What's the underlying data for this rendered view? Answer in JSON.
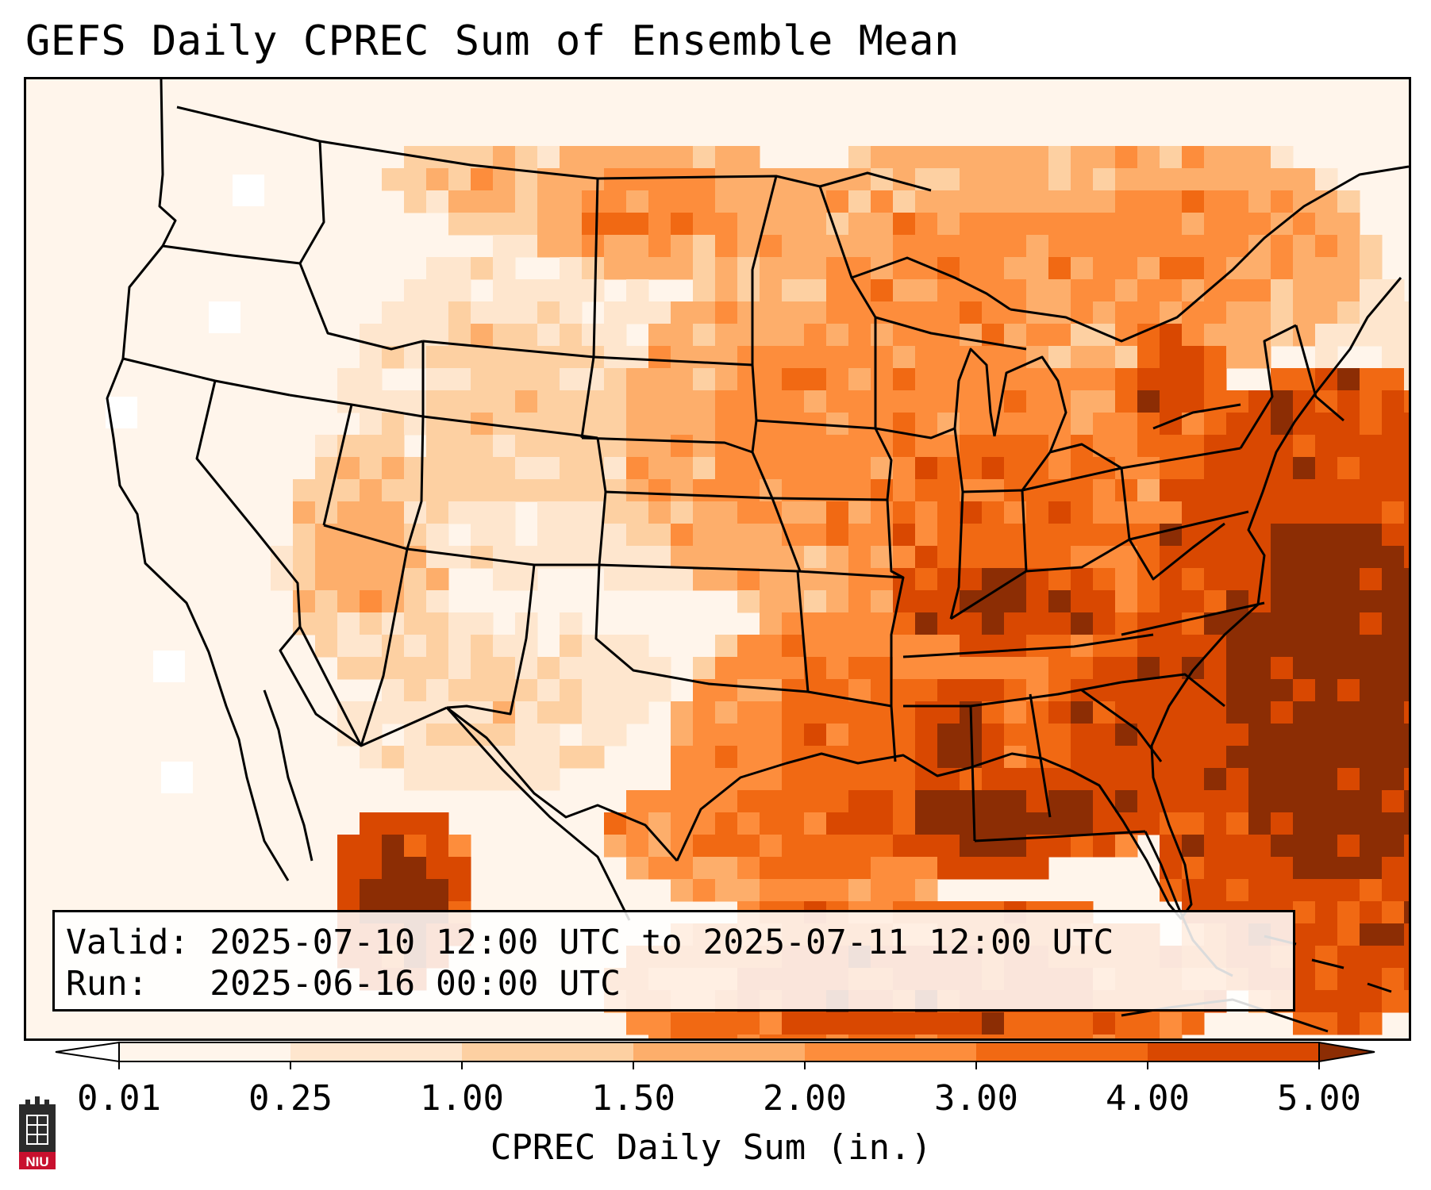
{
  "title": "GEFS Daily CPREC Sum of Ensemble Mean",
  "info": {
    "valid_line": "Valid: 2025-07-10 12:00 UTC to 2025-07-11 12:00 UTC",
    "run_line": "Run:   2025-06-16 00:00 UTC"
  },
  "colorbar": {
    "label": "CPREC Daily Sum (in.)",
    "ticks": [
      "0.01",
      "0.25",
      "1.00",
      "1.50",
      "2.00",
      "3.00",
      "4.00",
      "5.00"
    ],
    "colors": [
      "#fff5eb",
      "#fee6ce",
      "#fdd0a2",
      "#fdae6b",
      "#fd8d3c",
      "#f16913",
      "#d94801",
      "#8c2d04"
    ],
    "extend": "both"
  },
  "map": {
    "region": "CONUS",
    "colors": {
      "c0": "#ffffff",
      "c1": "#fff5eb",
      "c2": "#fee6ce",
      "c3": "#fdd0a2",
      "c4": "#fdae6b",
      "c5": "#fd8d3c",
      "c6": "#f16913",
      "c7": "#d94801",
      "c8": "#8c2d04",
      "boundary": "#000000"
    }
  },
  "logo": {
    "icon": "niu-logo-icon",
    "text": "NIU"
  }
}
